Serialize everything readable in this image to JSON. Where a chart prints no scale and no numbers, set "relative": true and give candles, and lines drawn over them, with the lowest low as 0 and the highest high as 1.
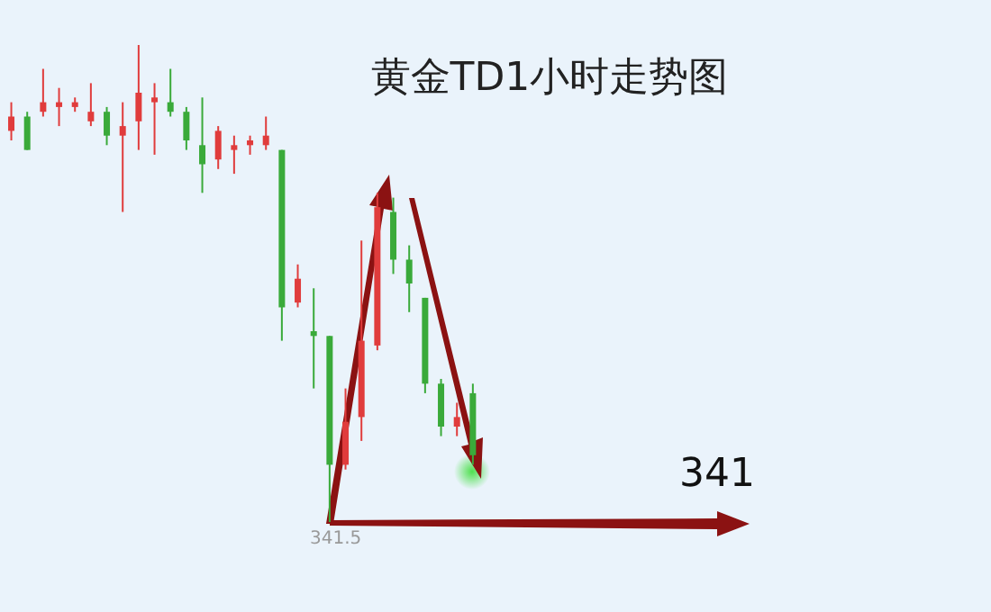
{
  "chart_data": {
    "type": "candlestick",
    "title": "黄金TD1小时走势图",
    "relative": true,
    "categories": [
      null,
      null,
      null,
      null,
      null,
      null,
      null,
      null,
      null,
      null,
      null,
      null,
      null,
      null,
      null,
      null,
      null,
      null,
      null,
      null,
      null,
      null,
      null,
      null,
      null,
      null,
      null,
      null,
      null,
      null
    ],
    "ohlc": [
      [
        0.82,
        0.88,
        0.8,
        0.85
      ],
      [
        0.85,
        0.86,
        0.78,
        0.78
      ],
      [
        0.86,
        0.95,
        0.85,
        0.88
      ],
      [
        0.87,
        0.91,
        0.83,
        0.88
      ],
      [
        0.87,
        0.89,
        0.86,
        0.88
      ],
      [
        0.84,
        0.92,
        0.83,
        0.86
      ],
      [
        0.86,
        0.87,
        0.79,
        0.81
      ],
      [
        0.81,
        0.88,
        0.65,
        0.83
      ],
      [
        0.84,
        1,
        0.78,
        0.9
      ],
      [
        0.88,
        0.92,
        0.77,
        0.89
      ],
      [
        0.88,
        0.95,
        0.85,
        0.86
      ],
      [
        0.86,
        0.87,
        0.78,
        0.8
      ],
      [
        0.79,
        0.89,
        0.69,
        0.75
      ],
      [
        0.76,
        0.83,
        0.74,
        0.82
      ],
      [
        0.78,
        0.81,
        0.73,
        0.79
      ],
      [
        0.79,
        0.81,
        0.77,
        0.8
      ],
      [
        0.79,
        0.85,
        0.78,
        0.81
      ],
      [
        0.78,
        0.78,
        0.38,
        0.45
      ],
      [
        0.46,
        0.54,
        0.45,
        0.51
      ],
      [
        0.4,
        0.49,
        0.28,
        0.39
      ],
      [
        0.39,
        0.39,
        0,
        0.12
      ],
      [
        0.12,
        0.28,
        0.11,
        0.21
      ],
      [
        0.22,
        0.59,
        0.17,
        0.38
      ],
      [
        0.37,
        0.69,
        0.36,
        0.66
      ],
      [
        0.65,
        0.68,
        0.52,
        0.55
      ],
      [
        0.55,
        0.58,
        0.44,
        0.5
      ],
      [
        0.47,
        0.47,
        0.27,
        0.29
      ],
      [
        0.29,
        0.3,
        0.18,
        0.2
      ],
      [
        0.2,
        0.25,
        0.18,
        0.22
      ],
      [
        0.27,
        0.29,
        0.12,
        0.14
      ]
    ],
    "colors": [
      "#e03c3c",
      "#3aaa3a",
      "#e03c3c",
      "#e03c3c",
      "#e03c3c",
      "#e03c3c",
      "#3aaa3a",
      "#e03c3c",
      "#e03c3c",
      "#e03c3c",
      "#3aaa3a",
      "#3aaa3a",
      "#3aaa3a",
      "#e03c3c",
      "#e03c3c",
      "#e03c3c",
      "#e03c3c",
      "#3aaa3a",
      "#e03c3c",
      "#3aaa3a",
      "#3aaa3a",
      "#e03c3c",
      "#e03c3c",
      "#e03c3c",
      "#3aaa3a",
      "#3aaa3a",
      "#3aaa3a",
      "#3aaa3a",
      "#e03c3c",
      "#3aaa3a"
    ],
    "annotations": [
      {
        "text": "341.5",
        "y": 0
      },
      "341"
    ]
  }
}
